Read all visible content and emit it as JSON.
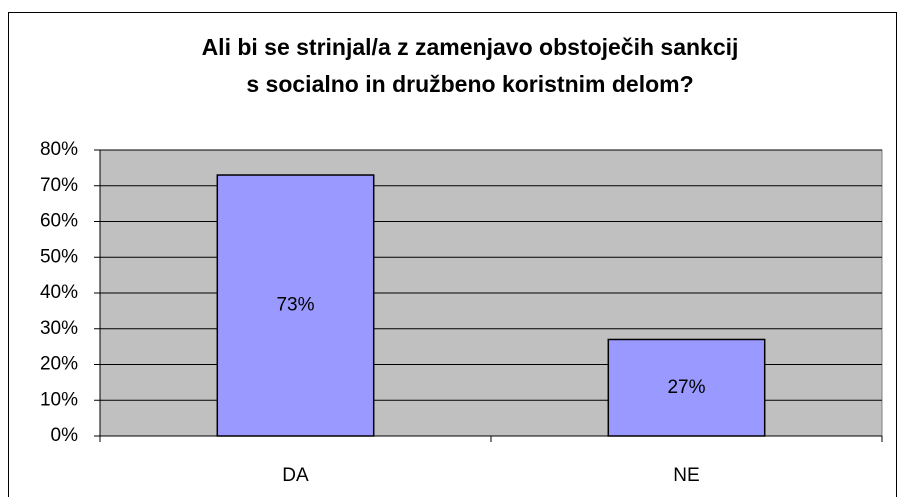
{
  "chart_data": {
    "type": "bar",
    "title": [
      "Ali bi se strinjal/a z zamenjavo obstoječih sankcij",
      "s socialno in družbeno koristnim delom?"
    ],
    "categories": [
      "DA",
      "NE"
    ],
    "values": [
      73,
      27
    ],
    "value_labels": [
      "73%",
      "27%"
    ],
    "color": "#9999ff",
    "plot_background": "#c0c0c0",
    "ylim": [
      0,
      80
    ],
    "yticks": [
      {
        "value": 0,
        "label": "0%"
      },
      {
        "value": 10,
        "label": "10%"
      },
      {
        "value": 20,
        "label": "20%"
      },
      {
        "value": 30,
        "label": "30%"
      },
      {
        "value": 40,
        "label": "40%"
      },
      {
        "value": 50,
        "label": "50%"
      },
      {
        "value": 60,
        "label": "60%"
      },
      {
        "value": 70,
        "label": "70%"
      },
      {
        "value": 80,
        "label": "80%"
      }
    ],
    "grid": true
  }
}
